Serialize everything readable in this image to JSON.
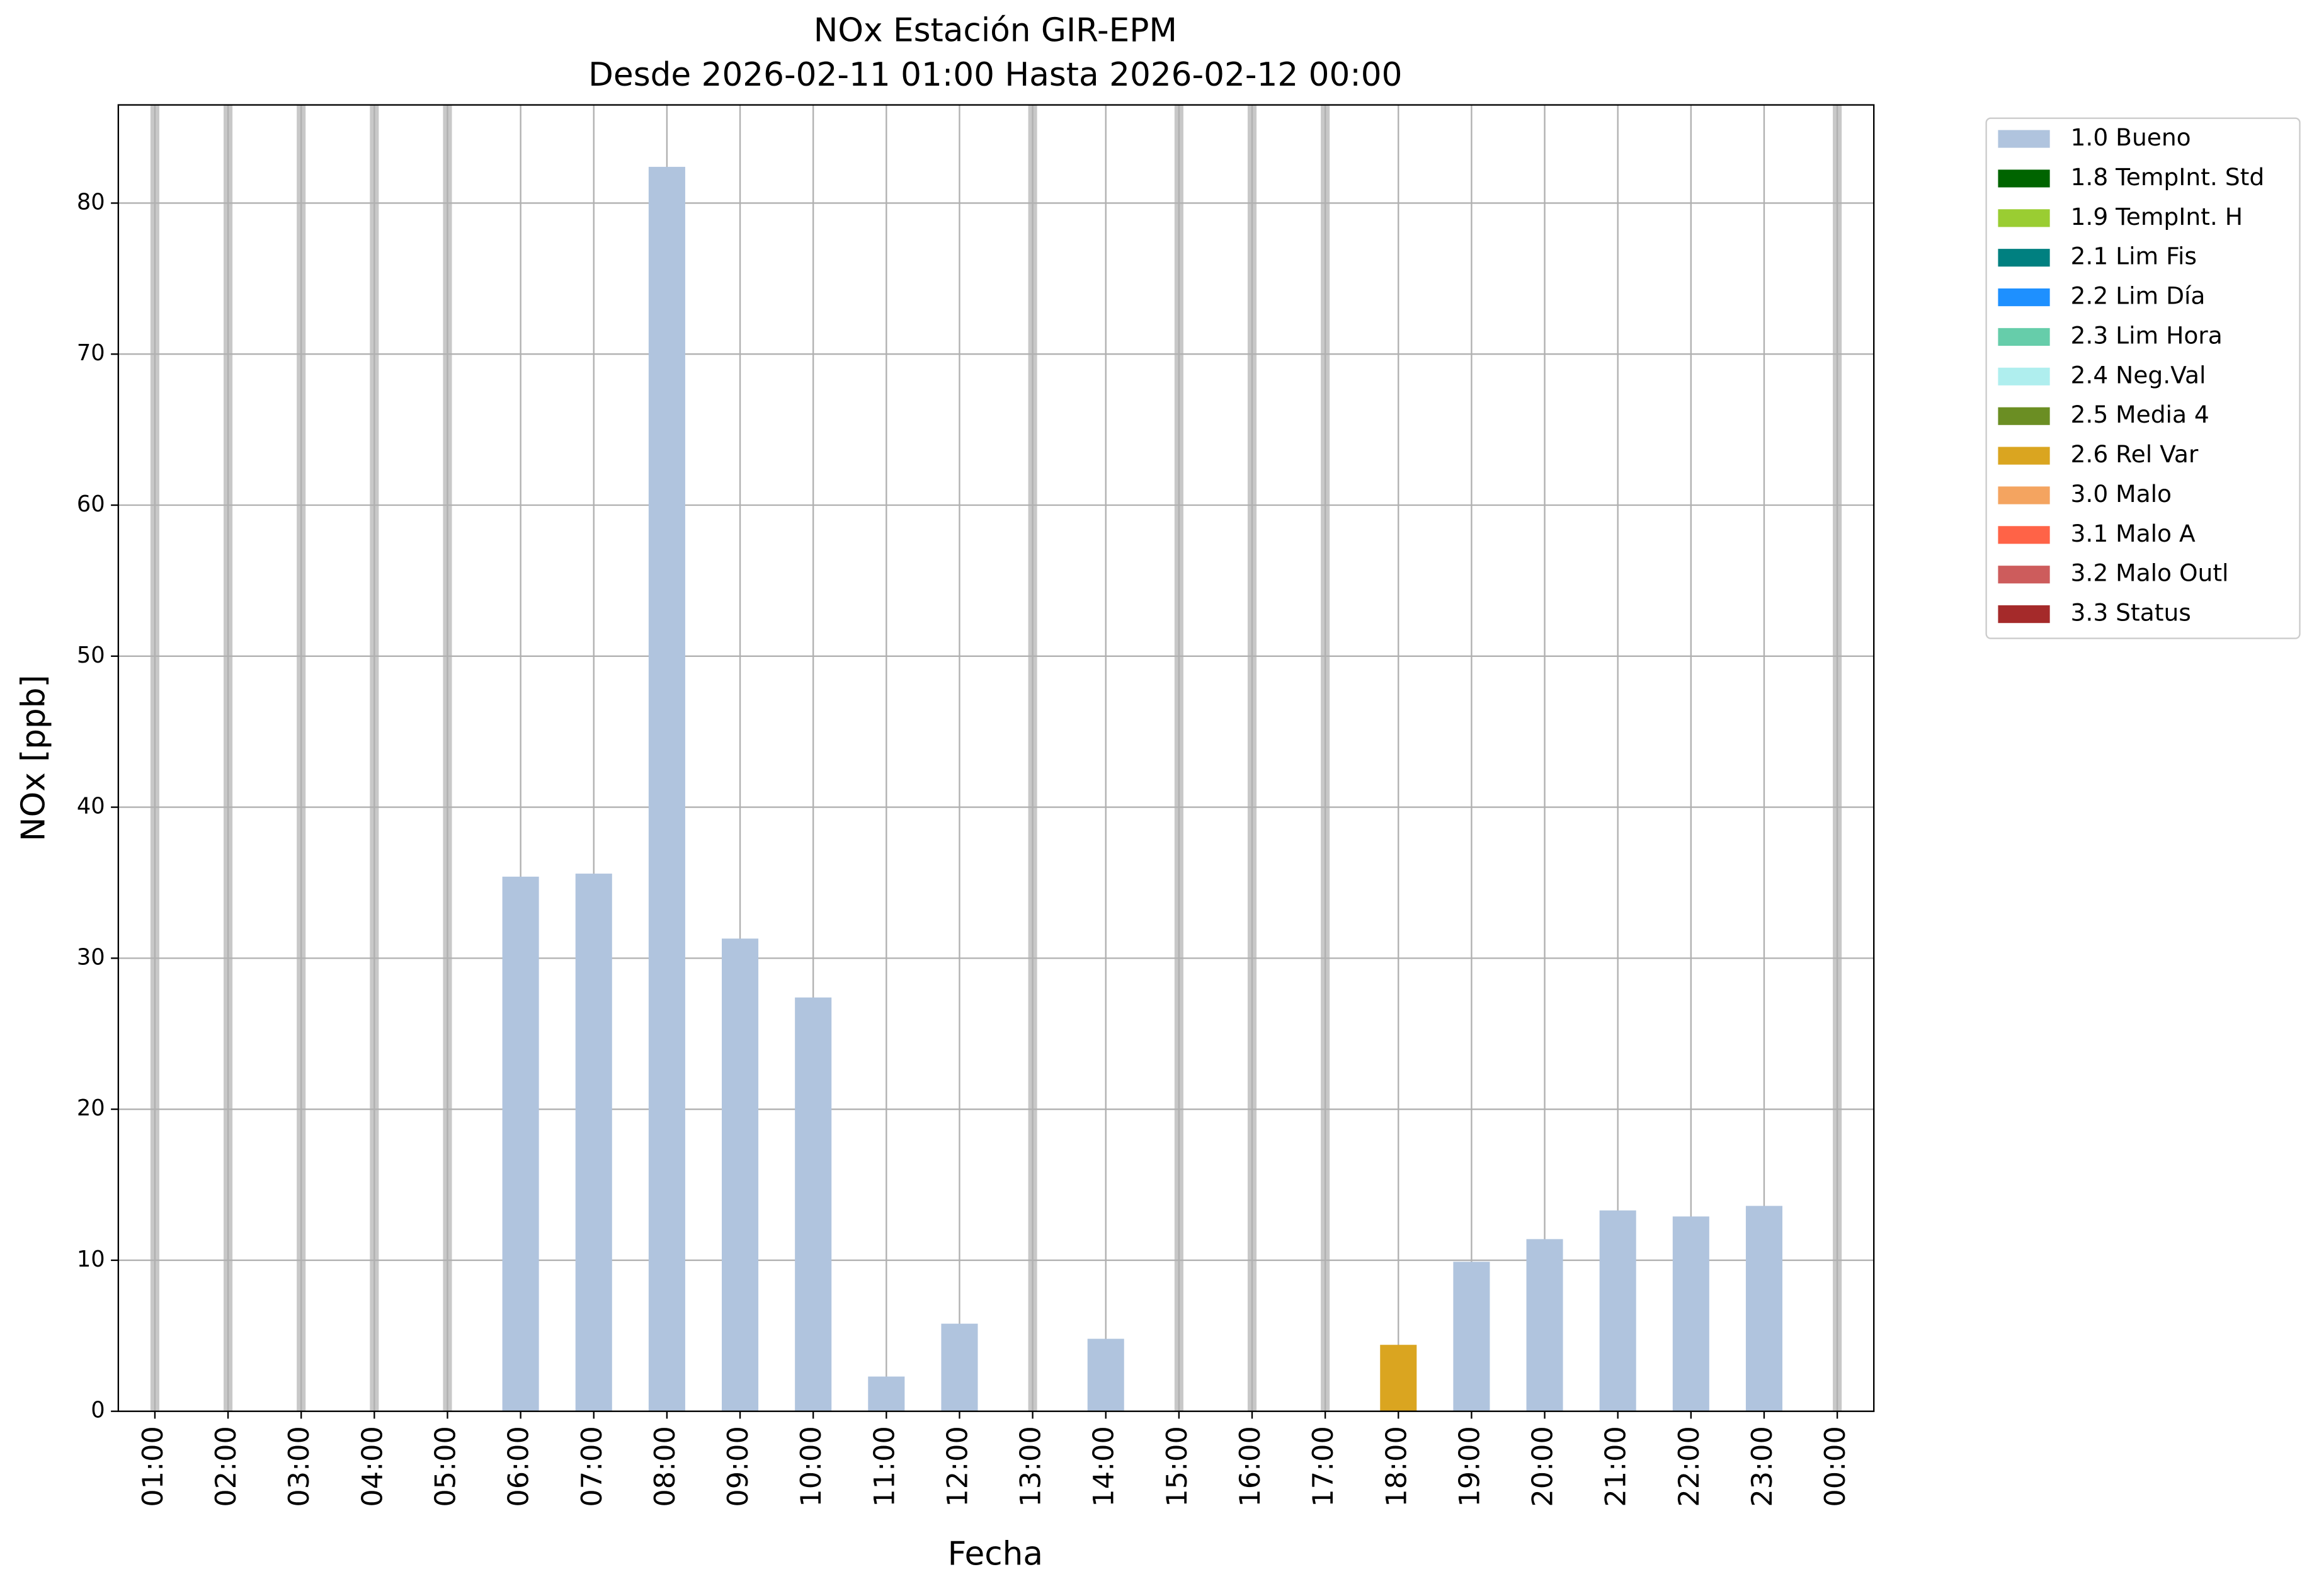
{
  "chart_data": {
    "type": "bar",
    "title": "NOx Estación GIR-EPM",
    "subtitle": "Desde 2026-02-11 01:00 Hasta 2026-02-12 00:00",
    "x_label": "Fecha",
    "y_label": "NOx [ppb]",
    "categories": [
      "01:00",
      "02:00",
      "03:00",
      "04:00",
      "05:00",
      "06:00",
      "07:00",
      "08:00",
      "09:00",
      "10:00",
      "11:00",
      "12:00",
      "13:00",
      "14:00",
      "15:00",
      "16:00",
      "17:00",
      "18:00",
      "19:00",
      "20:00",
      "21:00",
      "22:00",
      "23:00",
      "00:00"
    ],
    "series": [
      {
        "name": "1.0 Bueno",
        "color": "#b0c4de",
        "values": [
          null,
          null,
          null,
          null,
          null,
          35.4,
          35.6,
          82.4,
          31.3,
          27.4,
          2.3,
          5.8,
          null,
          4.8,
          null,
          null,
          null,
          null,
          9.9,
          11.4,
          13.3,
          12.9,
          13.6,
          null
        ]
      },
      {
        "name": "1.8 TempInt. Std",
        "color": "#006400",
        "values": [
          null,
          null,
          null,
          null,
          null,
          null,
          null,
          null,
          null,
          null,
          null,
          null,
          null,
          null,
          null,
          null,
          null,
          null,
          null,
          null,
          null,
          null,
          null,
          null
        ]
      },
      {
        "name": "1.9 TempInt. H",
        "color": "#9acd32",
        "values": [
          null,
          null,
          null,
          null,
          null,
          null,
          null,
          null,
          null,
          null,
          null,
          null,
          null,
          null,
          null,
          null,
          null,
          null,
          null,
          null,
          null,
          null,
          null,
          null
        ]
      },
      {
        "name": "2.1 Lim Fis",
        "color": "#008080",
        "values": [
          null,
          null,
          null,
          null,
          null,
          null,
          null,
          null,
          null,
          null,
          null,
          null,
          null,
          null,
          null,
          null,
          null,
          null,
          null,
          null,
          null,
          null,
          null,
          null
        ]
      },
      {
        "name": "2.2 Lim Día",
        "color": "#1e90ff",
        "values": [
          null,
          null,
          null,
          null,
          null,
          null,
          null,
          null,
          null,
          null,
          null,
          null,
          null,
          null,
          null,
          null,
          null,
          null,
          null,
          null,
          null,
          null,
          null,
          null
        ]
      },
      {
        "name": "2.3 Lim Hora",
        "color": "#66cdaa",
        "values": [
          null,
          null,
          null,
          null,
          null,
          null,
          null,
          null,
          null,
          null,
          null,
          null,
          null,
          null,
          null,
          null,
          null,
          null,
          null,
          null,
          null,
          null,
          null,
          null
        ]
      },
      {
        "name": "2.4 Neg.Val",
        "color": "#afeeee",
        "values": [
          null,
          null,
          null,
          null,
          null,
          null,
          null,
          null,
          null,
          null,
          null,
          null,
          null,
          null,
          null,
          null,
          null,
          null,
          null,
          null,
          null,
          null,
          null,
          null
        ]
      },
      {
        "name": "2.5 Media 4",
        "color": "#6b8e23",
        "values": [
          null,
          null,
          null,
          null,
          null,
          null,
          null,
          null,
          null,
          null,
          null,
          null,
          null,
          null,
          null,
          null,
          null,
          null,
          null,
          null,
          null,
          null,
          null,
          null
        ]
      },
      {
        "name": "2.6 Rel Var",
        "color": "#daa520",
        "values": [
          null,
          null,
          null,
          null,
          null,
          null,
          null,
          null,
          null,
          null,
          null,
          null,
          null,
          null,
          null,
          null,
          null,
          4.4,
          null,
          null,
          null,
          null,
          null,
          null
        ]
      },
      {
        "name": "3.0 Malo",
        "color": "#f4a460",
        "values": [
          null,
          null,
          null,
          null,
          null,
          null,
          null,
          null,
          null,
          null,
          null,
          null,
          null,
          null,
          null,
          null,
          null,
          null,
          null,
          null,
          null,
          null,
          null,
          null
        ]
      },
      {
        "name": "3.1 Malo A",
        "color": "#ff6347",
        "values": [
          null,
          null,
          null,
          null,
          null,
          null,
          null,
          null,
          null,
          null,
          null,
          null,
          null,
          null,
          null,
          null,
          null,
          null,
          null,
          null,
          null,
          null,
          null,
          null
        ]
      },
      {
        "name": "3.2 Malo Outl",
        "color": "#cd5c5c",
        "values": [
          null,
          null,
          null,
          null,
          null,
          null,
          null,
          null,
          null,
          null,
          null,
          null,
          null,
          null,
          null,
          null,
          null,
          null,
          null,
          null,
          null,
          null,
          null,
          null
        ]
      },
      {
        "name": "3.3 Status",
        "color": "#a52a2a",
        "values": [
          null,
          null,
          null,
          null,
          null,
          null,
          null,
          null,
          null,
          null,
          null,
          null,
          null,
          null,
          null,
          null,
          null,
          null,
          null,
          null,
          null,
          null,
          null,
          null
        ]
      }
    ],
    "ylim": [
      0,
      86.5
    ],
    "yticks": [
      0,
      10,
      20,
      30,
      40,
      50,
      60,
      70,
      80
    ],
    "grid": true,
    "legend": "outside right"
  }
}
